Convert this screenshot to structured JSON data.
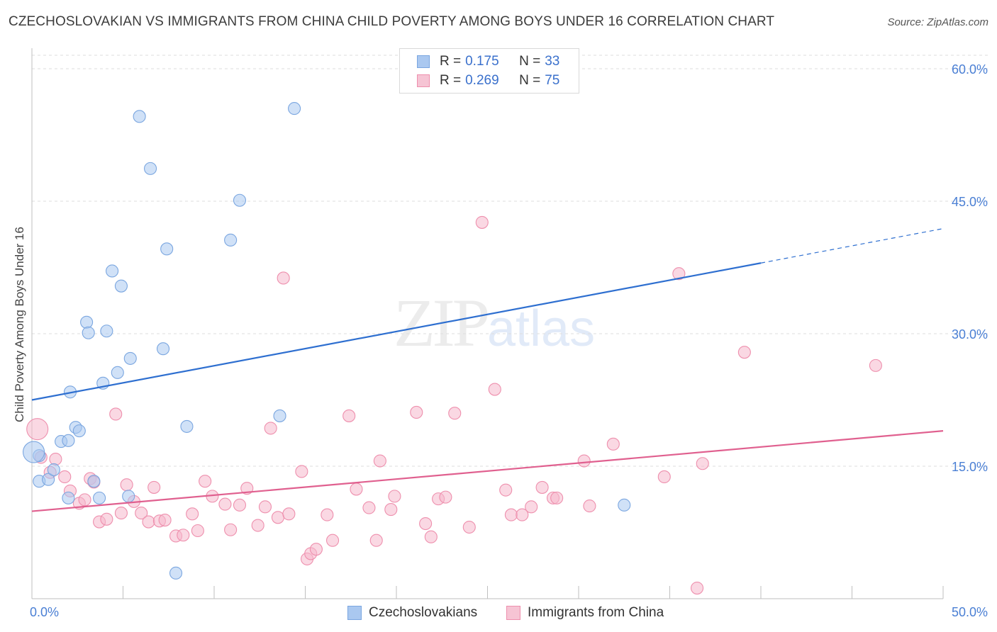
{
  "title": "CZECHOSLOVAKIAN VS IMMIGRANTS FROM CHINA CHILD POVERTY AMONG BOYS UNDER 16 CORRELATION CHART",
  "source": "Source: ZipAtlas.com",
  "watermark": {
    "zip": "ZIP",
    "atlas": "atlas"
  },
  "legend": {
    "rows": [
      {
        "r_label": "R = ",
        "r_value": "0.175",
        "n_label": "N = ",
        "n_value": "33"
      },
      {
        "r_label": "R = ",
        "r_value": "0.269",
        "n_label": "N = ",
        "n_value": "75"
      }
    ]
  },
  "bottom_legend": [
    "Czechoslovakians",
    "Immigrants from China"
  ],
  "colors": {
    "blue_fill": "#aac8f0",
    "blue_stroke": "#7aa6e0",
    "blue_line": "#2e6fd0",
    "pink_fill": "#f6b8cc",
    "pink_stroke": "#ee8fad",
    "pink_line": "#e0608f",
    "grid": "#dedede",
    "tick_text": "#4a7fd4"
  },
  "chart_data": {
    "type": "scatter",
    "title": "CZECHOSLOVAKIAN VS IMMIGRANTS FROM CHINA CHILD POVERTY AMONG BOYS UNDER 16 CORRELATION CHART",
    "xlabel": "",
    "ylabel": "Child Poverty Among Boys Under 16",
    "xlim": [
      0,
      50
    ],
    "ylim": [
      0,
      60
    ],
    "x_tick_labels": [
      "0.0%",
      "50.0%"
    ],
    "y_tick_labels": [
      "15.0%",
      "30.0%",
      "45.0%",
      "60.0%"
    ],
    "y_ticks": [
      15,
      30,
      45,
      60
    ],
    "grid": true,
    "legend_position": "top-center",
    "series": [
      {
        "name": "Czechoslovakians",
        "r": 0.175,
        "n": 33,
        "color": "blue",
        "points": [
          [
            0.4,
            16.2
          ],
          [
            0.4,
            13.3
          ],
          [
            0.9,
            13.5
          ],
          [
            1.2,
            14.6
          ],
          [
            1.6,
            17.8
          ],
          [
            2.0,
            17.9
          ],
          [
            2.0,
            11.4
          ],
          [
            2.1,
            23.4
          ],
          [
            2.4,
            19.4
          ],
          [
            2.6,
            19.0
          ],
          [
            3.0,
            31.3
          ],
          [
            3.1,
            30.1
          ],
          [
            3.4,
            13.3
          ],
          [
            3.7,
            11.4
          ],
          [
            3.9,
            24.4
          ],
          [
            4.1,
            30.3
          ],
          [
            4.4,
            37.1
          ],
          [
            4.7,
            25.6
          ],
          [
            4.9,
            35.4
          ],
          [
            5.3,
            11.6
          ],
          [
            5.4,
            27.2
          ],
          [
            5.9,
            54.6
          ],
          [
            6.5,
            48.7
          ],
          [
            7.2,
            28.3
          ],
          [
            7.4,
            39.6
          ],
          [
            7.9,
            2.9
          ],
          [
            8.5,
            19.5
          ],
          [
            10.9,
            40.6
          ],
          [
            11.4,
            45.1
          ],
          [
            13.6,
            20.7
          ],
          [
            14.4,
            55.5
          ],
          [
            32.5,
            10.6
          ],
          [
            0.1,
            16.6
          ]
        ],
        "trend": {
          "x0": 0,
          "y0": 22.5,
          "x1": 40,
          "y1": 38.0,
          "dash_x1": 50,
          "dash_y1": 41.9
        }
      },
      {
        "name": "Immigrants from China",
        "r": 0.269,
        "n": 75,
        "color": "pink",
        "points": [
          [
            0.3,
            19.2
          ],
          [
            0.5,
            16.0
          ],
          [
            1.0,
            14.3
          ],
          [
            1.3,
            15.8
          ],
          [
            1.8,
            13.8
          ],
          [
            2.1,
            12.2
          ],
          [
            2.6,
            10.8
          ],
          [
            2.9,
            11.2
          ],
          [
            3.2,
            13.6
          ],
          [
            3.4,
            13.2
          ],
          [
            3.7,
            8.7
          ],
          [
            4.1,
            9.0
          ],
          [
            4.6,
            20.9
          ],
          [
            4.9,
            9.7
          ],
          [
            5.2,
            12.9
          ],
          [
            5.6,
            11.0
          ],
          [
            6.0,
            9.7
          ],
          [
            6.4,
            8.7
          ],
          [
            6.7,
            12.6
          ],
          [
            7.0,
            8.8
          ],
          [
            7.3,
            8.9
          ],
          [
            7.9,
            7.1
          ],
          [
            8.3,
            7.2
          ],
          [
            8.8,
            9.6
          ],
          [
            9.1,
            7.7
          ],
          [
            9.5,
            13.3
          ],
          [
            9.9,
            11.6
          ],
          [
            10.6,
            10.7
          ],
          [
            10.9,
            7.8
          ],
          [
            11.4,
            10.6
          ],
          [
            11.8,
            12.5
          ],
          [
            12.4,
            8.3
          ],
          [
            12.8,
            10.4
          ],
          [
            13.1,
            19.3
          ],
          [
            13.5,
            9.2
          ],
          [
            13.8,
            36.3
          ],
          [
            14.1,
            9.6
          ],
          [
            14.8,
            14.4
          ],
          [
            15.1,
            4.5
          ],
          [
            15.3,
            5.1
          ],
          [
            15.6,
            5.6
          ],
          [
            16.2,
            9.5
          ],
          [
            16.5,
            6.6
          ],
          [
            17.4,
            20.7
          ],
          [
            17.8,
            12.4
          ],
          [
            18.5,
            10.3
          ],
          [
            18.9,
            6.6
          ],
          [
            19.1,
            15.6
          ],
          [
            19.7,
            10.1
          ],
          [
            19.9,
            11.6
          ],
          [
            21.1,
            21.1
          ],
          [
            21.6,
            8.5
          ],
          [
            21.9,
            7.0
          ],
          [
            22.3,
            11.3
          ],
          [
            22.7,
            11.5
          ],
          [
            23.2,
            21.0
          ],
          [
            24.0,
            8.1
          ],
          [
            24.7,
            42.6
          ],
          [
            25.4,
            23.7
          ],
          [
            26.0,
            12.3
          ],
          [
            26.3,
            9.5
          ],
          [
            26.9,
            9.5
          ],
          [
            27.4,
            10.4
          ],
          [
            28.0,
            12.6
          ],
          [
            28.6,
            11.4
          ],
          [
            28.8,
            11.4
          ],
          [
            30.3,
            15.6
          ],
          [
            30.6,
            10.5
          ],
          [
            31.9,
            17.5
          ],
          [
            34.7,
            13.8
          ],
          [
            35.5,
            36.8
          ],
          [
            36.5,
            1.2
          ],
          [
            36.8,
            15.3
          ],
          [
            39.1,
            27.9
          ],
          [
            46.3,
            26.4
          ]
        ],
        "trend": {
          "x0": 0,
          "y0": 9.9,
          "x1": 50,
          "y1": 19.0
        }
      }
    ]
  }
}
